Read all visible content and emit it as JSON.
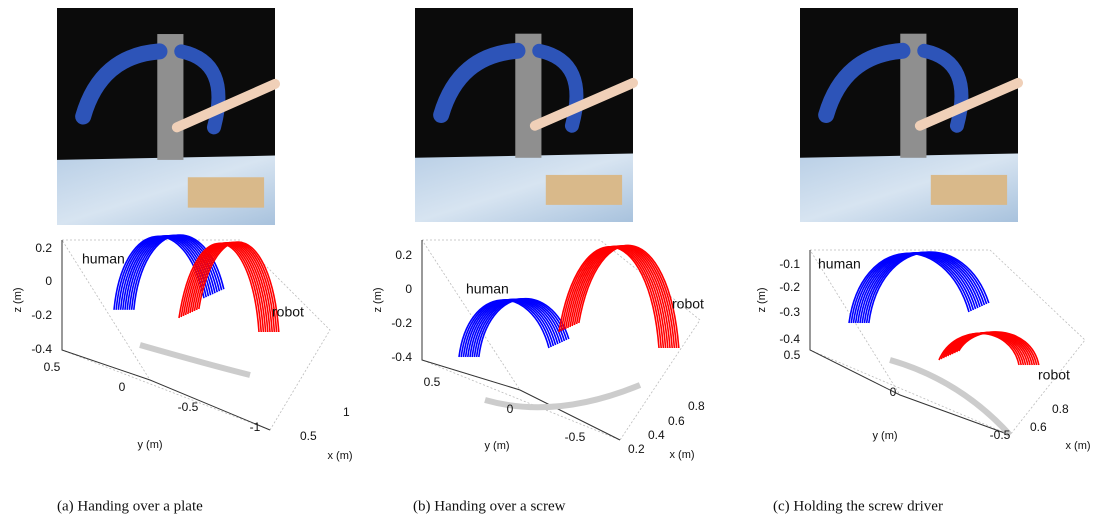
{
  "panels": [
    {
      "caption": "(a) Handing over a plate",
      "z_label": "z (m)",
      "y_label": "y (m)",
      "x_label": "x (m)",
      "z_ticks": [
        "0.2",
        "0",
        "-0.2",
        "-0.4"
      ],
      "y_ticks": [
        "0.5",
        "0",
        "-0.5",
        "-1"
      ],
      "x_ticks": [
        "0.5",
        "1"
      ],
      "human_label": "human",
      "robot_label": "robot"
    },
    {
      "caption": "(b) Handing over a screw",
      "z_label": "z (m)",
      "y_label": "y (m)",
      "x_label": "x (m)",
      "z_ticks": [
        "0.2",
        "0",
        "-0.2",
        "-0.4"
      ],
      "y_ticks": [
        "0.5",
        "0",
        "-0.5"
      ],
      "x_ticks": [
        "0.2",
        "0.4",
        "0.6",
        "0.8"
      ],
      "human_label": "human",
      "robot_label": "robot"
    },
    {
      "caption": "(c) Holding the screw driver",
      "z_label": "z (m)",
      "y_label": "y (m)",
      "x_label": "x (m)",
      "z_ticks": [
        "-0.1",
        "-0.2",
        "-0.3",
        "-0.4"
      ],
      "y_ticks": [
        "0.5",
        "0",
        "-0.5"
      ],
      "x_ticks": [
        "0.6",
        "0.8"
      ],
      "human_label": "human",
      "robot_label": "robot"
    }
  ]
}
